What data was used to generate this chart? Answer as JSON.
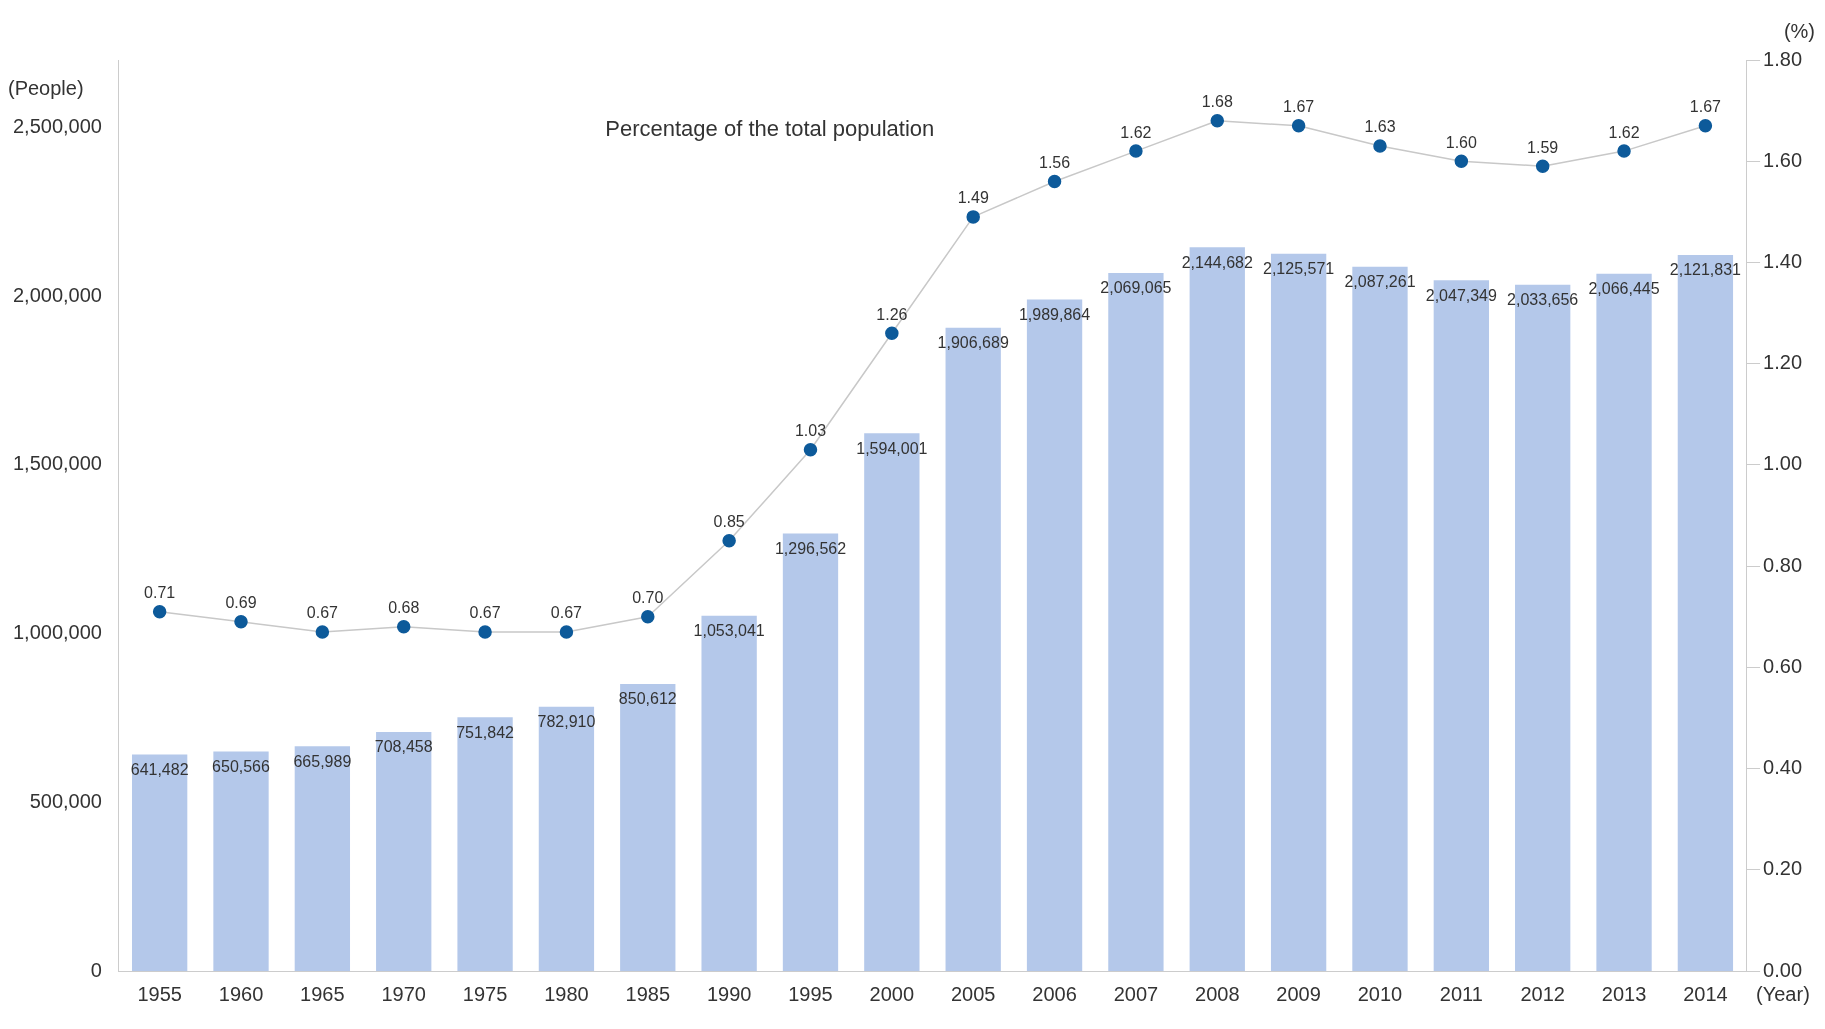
{
  "chart_data": {
    "type": "bar",
    "ylabel": "(People)",
    "y2label": "(%)",
    "xlabel": "(Year)",
    "categories": [
      "1955",
      "1960",
      "1965",
      "1970",
      "1975",
      "1980",
      "1985",
      "1990",
      "1995",
      "2000",
      "2005",
      "2006",
      "2007",
      "2008",
      "2009",
      "2010",
      "2011",
      "2012",
      "2013",
      "2014"
    ],
    "series": [
      {
        "color": "#b4c8ea",
        "values": [
          641482,
          650566,
          665989,
          708458,
          751842,
          782910,
          850612,
          1053041,
          1296562,
          1594001,
          1906689,
          1989864,
          2069065,
          2144682,
          2125571,
          2087261,
          2047349,
          2033656,
          2066445,
          2121831
        ],
        "value_labels": [
          "641,482",
          "650,566",
          "665,989",
          "708,458",
          "751,842",
          "782,910",
          "850,612",
          "1,053,041",
          "1,296,562",
          "1,594,001",
          "1,906,689",
          "1,989,864",
          "2,069,065",
          "2,144,682",
          "2,125,571",
          "2,087,261",
          "2,047,349",
          "2,033,656",
          "2,066,445",
          "2,121,831"
        ]
      },
      {
        "type": "line",
        "axis": "y2",
        "name": "Percentage of the total population",
        "color": "#0d5a9a",
        "values": [
          0.71,
          0.69,
          0.67,
          0.68,
          0.67,
          0.67,
          0.7,
          0.85,
          1.03,
          1.26,
          1.49,
          1.56,
          1.62,
          1.68,
          1.67,
          1.63,
          1.6,
          1.59,
          1.62,
          1.67
        ],
        "value_labels": [
          "0.71",
          "0.69",
          "0.67",
          "0.68",
          "0.67",
          "0.67",
          "0.70",
          "0.85",
          "1.03",
          "1.26",
          "1.49",
          "1.56",
          "1.62",
          "1.68",
          "1.67",
          "1.63",
          "1.60",
          "1.59",
          "1.62",
          "1.67"
        ]
      }
    ],
    "ylim": [
      0,
      2700000
    ],
    "yticks": [
      0,
      {
        "value": 500000,
        "label": "500,000"
      },
      {
        "value": 1000000,
        "label": "1,000,000"
      },
      {
        "value": 1500000,
        "label": "1,500,000"
      },
      {
        "value": 2000000,
        "label": "2,000,000"
      },
      {
        "value": 2500000,
        "label": "2,500,000"
      }
    ],
    "y2lim": [
      0,
      1.8
    ],
    "y2ticks": [
      {
        "value": 0,
        "label": "0.00"
      },
      {
        "value": 0.2,
        "label": "0.20"
      },
      {
        "value": 0.4,
        "label": "0.40"
      },
      {
        "value": 0.6,
        "label": "0.60"
      },
      {
        "value": 0.8,
        "label": "0.80"
      },
      {
        "value": 1,
        "label": "1.00"
      },
      {
        "value": 1.2,
        "label": "1.20"
      },
      {
        "value": 1.4,
        "label": "1.40"
      },
      {
        "value": 1.6,
        "label": "1.60"
      },
      {
        "value": 1.8,
        "label": "1.80"
      }
    ],
    "grid": false,
    "legend": false,
    "marker": "circle",
    "line_style": "solid"
  }
}
